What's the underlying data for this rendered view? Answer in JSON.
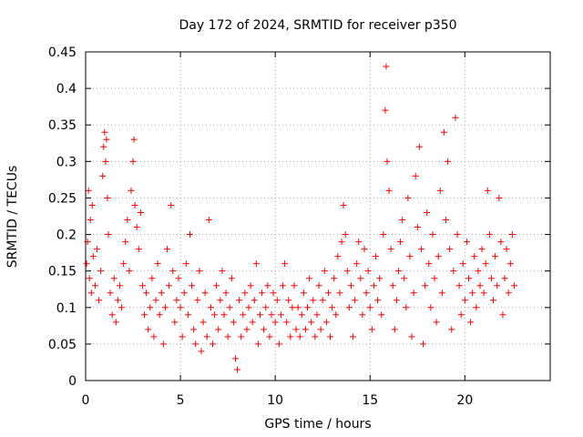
{
  "chart_data": {
    "type": "scatter",
    "title": "Day 172 of 2024, SRMTID for receiver p350",
    "xlabel": "GPS time / hours",
    "ylabel": "SRMTID / TECUs",
    "xlim": [
      0,
      24.5
    ],
    "ylim": [
      0,
      0.45
    ],
    "x_ticks": [
      0,
      5,
      10,
      15,
      20
    ],
    "x_tick_labels": [
      "0",
      "5",
      "10",
      "15",
      "20"
    ],
    "y_ticks": [
      0,
      0.05,
      0.1,
      0.15,
      0.2,
      0.25,
      0.3,
      0.35,
      0.4,
      0.45
    ],
    "y_tick_labels": [
      "0",
      "0.05",
      "0.1",
      "0.15",
      "0.2",
      "0.25",
      "0.3",
      "0.35",
      "0.4",
      "0.45"
    ],
    "grid": true,
    "marker": "plus",
    "color": "#ff0000",
    "series": [
      {
        "name": "p350",
        "points": [
          [
            0.05,
            0.16
          ],
          [
            0.1,
            0.19
          ],
          [
            0.15,
            0.26
          ],
          [
            0.2,
            0.14
          ],
          [
            0.25,
            0.22
          ],
          [
            0.3,
            0.12
          ],
          [
            0.35,
            0.24
          ],
          [
            0.4,
            0.17
          ],
          [
            0.5,
            0.13
          ],
          [
            0.6,
            0.18
          ],
          [
            0.7,
            0.11
          ],
          [
            0.8,
            0.15
          ],
          [
            0.9,
            0.28
          ],
          [
            0.95,
            0.32
          ],
          [
            1.0,
            0.34
          ],
          [
            1.05,
            0.3
          ],
          [
            1.1,
            0.33
          ],
          [
            1.15,
            0.25
          ],
          [
            1.2,
            0.2
          ],
          [
            1.3,
            0.12
          ],
          [
            1.4,
            0.09
          ],
          [
            1.5,
            0.14
          ],
          [
            1.6,
            0.08
          ],
          [
            1.7,
            0.11
          ],
          [
            1.8,
            0.13
          ],
          [
            1.9,
            0.1
          ],
          [
            2.0,
            0.16
          ],
          [
            2.1,
            0.19
          ],
          [
            2.2,
            0.22
          ],
          [
            2.3,
            0.15
          ],
          [
            2.4,
            0.26
          ],
          [
            2.5,
            0.3
          ],
          [
            2.55,
            0.33
          ],
          [
            2.6,
            0.24
          ],
          [
            2.7,
            0.21
          ],
          [
            2.8,
            0.18
          ],
          [
            2.9,
            0.23
          ],
          [
            3.0,
            0.13
          ],
          [
            3.1,
            0.09
          ],
          [
            3.2,
            0.12
          ],
          [
            3.3,
            0.07
          ],
          [
            3.4,
            0.1
          ],
          [
            3.5,
            0.14
          ],
          [
            3.6,
            0.06
          ],
          [
            3.7,
            0.11
          ],
          [
            3.8,
            0.16
          ],
          [
            3.9,
            0.09
          ],
          [
            4.0,
            0.12
          ],
          [
            4.1,
            0.05
          ],
          [
            4.2,
            0.1
          ],
          [
            4.3,
            0.18
          ],
          [
            4.4,
            0.13
          ],
          [
            4.5,
            0.24
          ],
          [
            4.6,
            0.15
          ],
          [
            4.7,
            0.08
          ],
          [
            4.8,
            0.11
          ],
          [
            4.9,
            0.14
          ],
          [
            5.0,
            0.1
          ],
          [
            5.1,
            0.06
          ],
          [
            5.2,
            0.12
          ],
          [
            5.3,
            0.16
          ],
          [
            5.4,
            0.09
          ],
          [
            5.5,
            0.2
          ],
          [
            5.6,
            0.13
          ],
          [
            5.7,
            0.07
          ],
          [
            5.8,
            0.05
          ],
          [
            5.9,
            0.11
          ],
          [
            6.0,
            0.15
          ],
          [
            6.1,
            0.04
          ],
          [
            6.2,
            0.08
          ],
          [
            6.3,
            0.12
          ],
          [
            6.4,
            0.06
          ],
          [
            6.5,
            0.22
          ],
          [
            6.6,
            0.1
          ],
          [
            6.7,
            0.05
          ],
          [
            6.8,
            0.09
          ],
          [
            6.9,
            0.13
          ],
          [
            7.0,
            0.07
          ],
          [
            7.1,
            0.11
          ],
          [
            7.2,
            0.15
          ],
          [
            7.3,
            0.09
          ],
          [
            7.4,
            0.12
          ],
          [
            7.5,
            0.06
          ],
          [
            7.6,
            0.1
          ],
          [
            7.7,
            0.14
          ],
          [
            7.8,
            0.08
          ],
          [
            7.9,
            0.03
          ],
          [
            8.0,
            0.015
          ],
          [
            8.1,
            0.11
          ],
          [
            8.2,
            0.06
          ],
          [
            8.3,
            0.09
          ],
          [
            8.4,
            0.12
          ],
          [
            8.5,
            0.07
          ],
          [
            8.6,
            0.1
          ],
          [
            8.7,
            0.13
          ],
          [
            8.8,
            0.08
          ],
          [
            8.9,
            0.11
          ],
          [
            9.0,
            0.16
          ],
          [
            9.1,
            0.05
          ],
          [
            9.2,
            0.09
          ],
          [
            9.3,
            0.12
          ],
          [
            9.4,
            0.07
          ],
          [
            9.5,
            0.1
          ],
          [
            9.6,
            0.13
          ],
          [
            9.7,
            0.06
          ],
          [
            9.8,
            0.09
          ],
          [
            9.9,
            0.12
          ],
          [
            10.0,
            0.08
          ],
          [
            10.1,
            0.11
          ],
          [
            10.2,
            0.05
          ],
          [
            10.3,
            0.09
          ],
          [
            10.4,
            0.13
          ],
          [
            10.5,
            0.16
          ],
          [
            10.6,
            0.08
          ],
          [
            10.7,
            0.11
          ],
          [
            10.8,
            0.06
          ],
          [
            10.9,
            0.1
          ],
          [
            11.0,
            0.13
          ],
          [
            11.1,
            0.07
          ],
          [
            11.2,
            0.1
          ],
          [
            11.3,
            0.06
          ],
          [
            11.4,
            0.09
          ],
          [
            11.5,
            0.12
          ],
          [
            11.6,
            0.07
          ],
          [
            11.7,
            0.1
          ],
          [
            11.8,
            0.14
          ],
          [
            11.9,
            0.08
          ],
          [
            12.0,
            0.11
          ],
          [
            12.1,
            0.06
          ],
          [
            12.2,
            0.09
          ],
          [
            12.3,
            0.13
          ],
          [
            12.4,
            0.07
          ],
          [
            12.5,
            0.11
          ],
          [
            12.6,
            0.15
          ],
          [
            12.7,
            0.08
          ],
          [
            12.8,
            0.12
          ],
          [
            12.9,
            0.06
          ],
          [
            13.0,
            0.1
          ],
          [
            13.1,
            0.14
          ],
          [
            13.2,
            0.09
          ],
          [
            13.3,
            0.17
          ],
          [
            13.4,
            0.12
          ],
          [
            13.5,
            0.19
          ],
          [
            13.6,
            0.24
          ],
          [
            13.7,
            0.2
          ],
          [
            13.8,
            0.15
          ],
          [
            13.9,
            0.1
          ],
          [
            14.0,
            0.13
          ],
          [
            14.1,
            0.06
          ],
          [
            14.2,
            0.11
          ],
          [
            14.3,
            0.16
          ],
          [
            14.4,
            0.19
          ],
          [
            14.5,
            0.14
          ],
          [
            14.6,
            0.09
          ],
          [
            14.7,
            0.18
          ],
          [
            14.8,
            0.12
          ],
          [
            14.9,
            0.15
          ],
          [
            15.0,
            0.1
          ],
          [
            15.1,
            0.07
          ],
          [
            15.2,
            0.13
          ],
          [
            15.3,
            0.17
          ],
          [
            15.4,
            0.11
          ],
          [
            15.5,
            0.14
          ],
          [
            15.6,
            0.09
          ],
          [
            15.7,
            0.2
          ],
          [
            15.8,
            0.37
          ],
          [
            15.85,
            0.43
          ],
          [
            15.9,
            0.3
          ],
          [
            16.0,
            0.26
          ],
          [
            16.1,
            0.18
          ],
          [
            16.2,
            0.13
          ],
          [
            16.3,
            0.07
          ],
          [
            16.4,
            0.11
          ],
          [
            16.5,
            0.15
          ],
          [
            16.6,
            0.19
          ],
          [
            16.7,
            0.22
          ],
          [
            16.8,
            0.14
          ],
          [
            16.9,
            0.1
          ],
          [
            17.0,
            0.25
          ],
          [
            17.1,
            0.17
          ],
          [
            17.2,
            0.06
          ],
          [
            17.3,
            0.12
          ],
          [
            17.4,
            0.28
          ],
          [
            17.5,
            0.21
          ],
          [
            17.6,
            0.32
          ],
          [
            17.7,
            0.18
          ],
          [
            17.8,
            0.05
          ],
          [
            17.9,
            0.13
          ],
          [
            18.0,
            0.23
          ],
          [
            18.1,
            0.16
          ],
          [
            18.2,
            0.1
          ],
          [
            18.3,
            0.2
          ],
          [
            18.4,
            0.14
          ],
          [
            18.5,
            0.08
          ],
          [
            18.6,
            0.17
          ],
          [
            18.7,
            0.26
          ],
          [
            18.8,
            0.12
          ],
          [
            18.9,
            0.34
          ],
          [
            19.0,
            0.22
          ],
          [
            19.1,
            0.3
          ],
          [
            19.2,
            0.18
          ],
          [
            19.3,
            0.07
          ],
          [
            19.4,
            0.15
          ],
          [
            19.5,
            0.36
          ],
          [
            19.6,
            0.2
          ],
          [
            19.7,
            0.13
          ],
          [
            19.8,
            0.09
          ],
          [
            19.9,
            0.16
          ],
          [
            20.0,
            0.11
          ],
          [
            20.1,
            0.19
          ],
          [
            20.2,
            0.14
          ],
          [
            20.3,
            0.08
          ],
          [
            20.4,
            0.12
          ],
          [
            20.5,
            0.17
          ],
          [
            20.6,
            0.1
          ],
          [
            20.7,
            0.15
          ],
          [
            20.8,
            0.13
          ],
          [
            20.9,
            0.18
          ],
          [
            21.0,
            0.12
          ],
          [
            21.1,
            0.16
          ],
          [
            21.2,
            0.26
          ],
          [
            21.3,
            0.2
          ],
          [
            21.4,
            0.14
          ],
          [
            21.5,
            0.11
          ],
          [
            21.6,
            0.17
          ],
          [
            21.7,
            0.13
          ],
          [
            21.8,
            0.25
          ],
          [
            21.9,
            0.19
          ],
          [
            22.0,
            0.09
          ],
          [
            22.1,
            0.14
          ],
          [
            22.2,
            0.18
          ],
          [
            22.3,
            0.12
          ],
          [
            22.4,
            0.16
          ],
          [
            22.5,
            0.2
          ],
          [
            22.6,
            0.13
          ]
        ]
      }
    ]
  }
}
